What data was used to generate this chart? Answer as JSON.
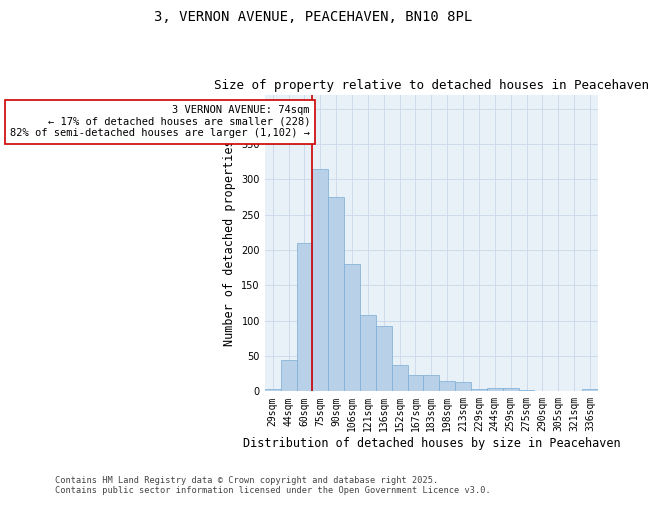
{
  "title1": "3, VERNON AVENUE, PEACEHAVEN, BN10 8PL",
  "title2": "Size of property relative to detached houses in Peacehaven",
  "xlabel": "Distribution of detached houses by size in Peacehaven",
  "ylabel": "Number of detached properties",
  "categories": [
    "29sqm",
    "44sqm",
    "60sqm",
    "75sqm",
    "90sqm",
    "106sqm",
    "121sqm",
    "136sqm",
    "152sqm",
    "167sqm",
    "183sqm",
    "198sqm",
    "213sqm",
    "229sqm",
    "244sqm",
    "259sqm",
    "275sqm",
    "290sqm",
    "305sqm",
    "321sqm",
    "336sqm"
  ],
  "values": [
    4,
    44,
    210,
    315,
    275,
    180,
    108,
    92,
    37,
    23,
    23,
    15,
    13,
    3,
    5,
    5,
    2,
    0,
    0,
    0,
    3
  ],
  "bar_color": "#b8d0e8",
  "bar_edge_color": "#7aadd4",
  "vline_index": 3,
  "vline_color": "#cc0000",
  "annotation_text": "3 VERNON AVENUE: 74sqm\n← 17% of detached houses are smaller (228)\n82% of semi-detached houses are larger (1,102) →",
  "annotation_box_color": "#ffffff",
  "annotation_box_edge": "#cc0000",
  "ylim": [
    0,
    420
  ],
  "yticks": [
    0,
    50,
    100,
    150,
    200,
    250,
    300,
    350,
    400
  ],
  "grid_color": "#c8d8e8",
  "background_color": "#e8f0f8",
  "footnote": "Contains HM Land Registry data © Crown copyright and database right 2025.\nContains public sector information licensed under the Open Government Licence v3.0.",
  "title_fontsize": 10,
  "subtitle_fontsize": 9,
  "axis_label_fontsize": 8.5,
  "tick_fontsize": 7,
  "annotation_fontsize": 7.5
}
